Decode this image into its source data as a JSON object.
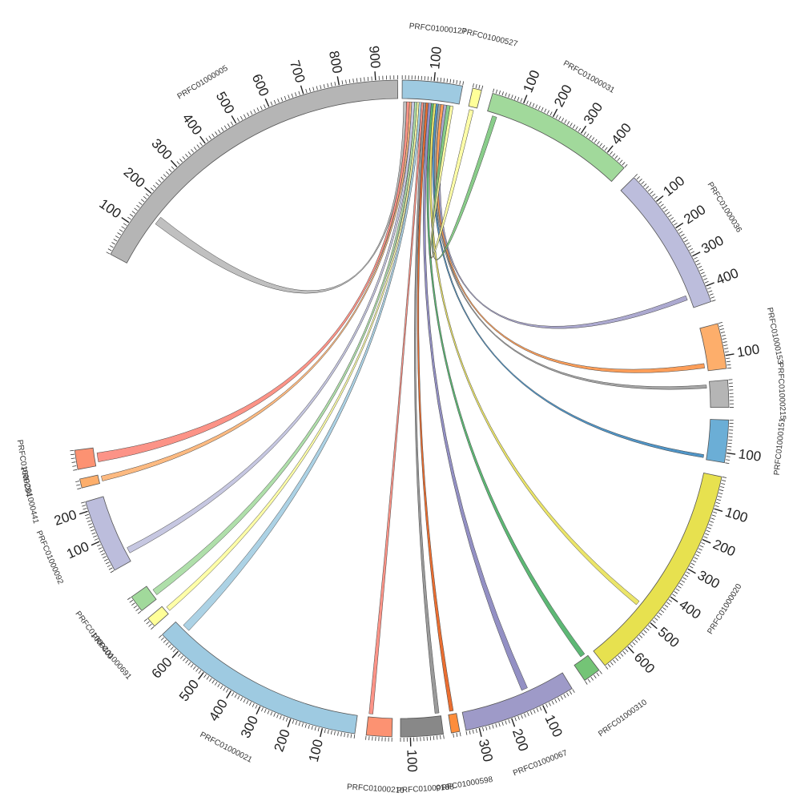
{
  "chart_data": {
    "type": "chord",
    "title": "",
    "tick_step_minor": 10,
    "tick_step_major": 100,
    "segments": [
      {
        "name": "PRFC01000127",
        "length": 190,
        "color": "#9ecae1",
        "start_deg": 0.3,
        "end_deg": 10.9
      },
      {
        "name": "PRFC01000527",
        "length": 30,
        "color": "#ffff99",
        "start_deg": 12.7,
        "end_deg": 14.3
      },
      {
        "name": "PRFC01000031",
        "length": 470,
        "color": "#a1d99b",
        "start_deg": 16.3,
        "end_deg": 42.9
      },
      {
        "name": "PRFC01000036",
        "length": 450,
        "color": "#bcbddc",
        "start_deg": 45.3,
        "end_deg": 71.0
      },
      {
        "name": "PRFC01000153",
        "length": 140,
        "color": "#fdae6b",
        "start_deg": 75.0,
        "end_deg": 83.0
      },
      {
        "name": "PRFC01000215",
        "length": 80,
        "color": "#b5b5b5",
        "start_deg": 85.0,
        "end_deg": 89.8
      },
      {
        "name": "PRFC01000151",
        "length": 130,
        "color": "#6baed6",
        "start_deg": 92.0,
        "end_deg": 99.5
      },
      {
        "name": "PRFC01000020",
        "length": 690,
        "color": "#e7e14f",
        "start_deg": 102.0,
        "end_deg": 141.5
      },
      {
        "name": "PRFC01000310",
        "length": 50,
        "color": "#74c476",
        "start_deg": 142.8,
        "end_deg": 145.9
      },
      {
        "name": "PRFC01000067",
        "length": 340,
        "color": "#9e9ac8",
        "start_deg": 148.5,
        "end_deg": 168.5
      },
      {
        "name": "PRFC01000598",
        "length": 25,
        "color": "#fd8d3c",
        "start_deg": 169.6,
        "end_deg": 171.1
      },
      {
        "name": "PRFC01000188",
        "length": 130,
        "color": "#888888",
        "start_deg": 172.5,
        "end_deg": 180.0
      },
      {
        "name": "PRFC01000210",
        "length": 80,
        "color": "#fc9272",
        "start_deg": 181.5,
        "end_deg": 186.0
      },
      {
        "name": "PRFC01000021",
        "length": 670,
        "color": "#9ecae1",
        "start_deg": 188.0,
        "end_deg": 226.5
      },
      {
        "name": "PRFC01000691",
        "length": 30,
        "color": "#ffff99",
        "start_deg": 228.5,
        "end_deg": 230.3
      },
      {
        "name": "PRFC01000400",
        "length": 50,
        "color": "#a1d99b",
        "start_deg": 232.0,
        "end_deg": 235.0
      },
      {
        "name": "PRFC01000092",
        "length": 230,
        "color": "#bcbddc",
        "start_deg": 240.5,
        "end_deg": 253.5
      },
      {
        "name": "PRFC01000441",
        "length": 25,
        "color": "#fdae6b",
        "start_deg": 256.0,
        "end_deg": 257.6
      },
      {
        "name": "PRFC01000284",
        "length": 50,
        "color": "#fc9272",
        "start_deg": 259.3,
        "end_deg": 262.7
      },
      {
        "name": "PRFC01000005",
        "length": 960,
        "color": "#b5b5b5",
        "start_deg": 298.0,
        "end_deg": 359.5
      }
    ],
    "links": [
      {
        "from": "PRFC01000127",
        "from_pos": [
          5,
          15
        ],
        "to": "PRFC01000005",
        "to_pos": [
          140,
          165
        ],
        "color": "#b5b5b5"
      },
      {
        "from": "PRFC01000127",
        "from_pos": [
          15,
          25
        ],
        "to": "PRFC01000284",
        "to_pos": [
          10,
          35
        ],
        "color": "#fb8072"
      },
      {
        "from": "PRFC01000127",
        "from_pos": [
          25,
          32
        ],
        "to": "PRFC01000441",
        "to_pos": [
          5,
          20
        ],
        "color": "#fdae6b"
      },
      {
        "from": "PRFC01000127",
        "from_pos": [
          32,
          42
        ],
        "to": "PRFC01000092",
        "to_pos": [
          25,
          45
        ],
        "color": "#bcbddc"
      },
      {
        "from": "PRFC01000127",
        "from_pos": [
          42,
          50
        ],
        "to": "PRFC01000400",
        "to_pos": [
          10,
          30
        ],
        "color": "#a1d99b"
      },
      {
        "from": "PRFC01000127",
        "from_pos": [
          50,
          57
        ],
        "to": "PRFC01000691",
        "to_pos": [
          5,
          20
        ],
        "color": "#ffff99"
      },
      {
        "from": "PRFC01000127",
        "from_pos": [
          57,
          65
        ],
        "to": "PRFC01000021",
        "to_pos": [
          620,
          645
        ],
        "color": "#9ecae1"
      },
      {
        "from": "PRFC01000127",
        "from_pos": [
          65,
          72
        ],
        "to": "PRFC01000210",
        "to_pos": [
          65,
          78
        ],
        "color": "#fb8072"
      },
      {
        "from": "PRFC01000127",
        "from_pos": [
          72,
          80
        ],
        "to": "PRFC01000188",
        "to_pos": [
          5,
          18
        ],
        "color": "#888888"
      },
      {
        "from": "PRFC01000127",
        "from_pos": [
          80,
          88
        ],
        "to": "PRFC01000598",
        "to_pos": [
          8,
          20
        ],
        "color": "#e6550d"
      },
      {
        "from": "PRFC01000127",
        "from_pos": [
          88,
          98
        ],
        "to": "PRFC01000067",
        "to_pos": [
          120,
          140
        ],
        "color": "#807dba"
      },
      {
        "from": "PRFC01000127",
        "from_pos": [
          98,
          106
        ],
        "to": "PRFC01000310",
        "to_pos": [
          5,
          20
        ],
        "color": "#41ab5d"
      },
      {
        "from": "PRFC01000127",
        "from_pos": [
          106,
          114
        ],
        "to": "PRFC01000020",
        "to_pos": [
          470,
          485
        ],
        "color": "#e7e14f"
      },
      {
        "from": "PRFC01000127",
        "from_pos": [
          114,
          122
        ],
        "to": "PRFC01000151",
        "to_pos": [
          115,
          125
        ],
        "color": "#3182bd"
      },
      {
        "from": "PRFC01000127",
        "from_pos": [
          122,
          130
        ],
        "to": "PRFC01000215",
        "to_pos": [
          10,
          20
        ],
        "color": "#969696"
      },
      {
        "from": "PRFC01000127",
        "from_pos": [
          130,
          140
        ],
        "to": "PRFC01000153",
        "to_pos": [
          115,
          130
        ],
        "color": "#fd8d3c"
      },
      {
        "from": "PRFC01000127",
        "from_pos": [
          140,
          150
        ],
        "to": "PRFC01000036",
        "to_pos": [
          405,
          420
        ],
        "color": "#9e9ac8"
      },
      {
        "from": "PRFC01000127",
        "from_pos": [
          150,
          162
        ],
        "to": "PRFC01000031",
        "to_pos": [
          20,
          35
        ],
        "color": "#74c476"
      },
      {
        "from": "PRFC01000127",
        "from_pos": [
          162,
          172
        ],
        "to": "PRFC01000527",
        "to_pos": [
          5,
          20
        ],
        "color": "#ffff99"
      }
    ]
  }
}
